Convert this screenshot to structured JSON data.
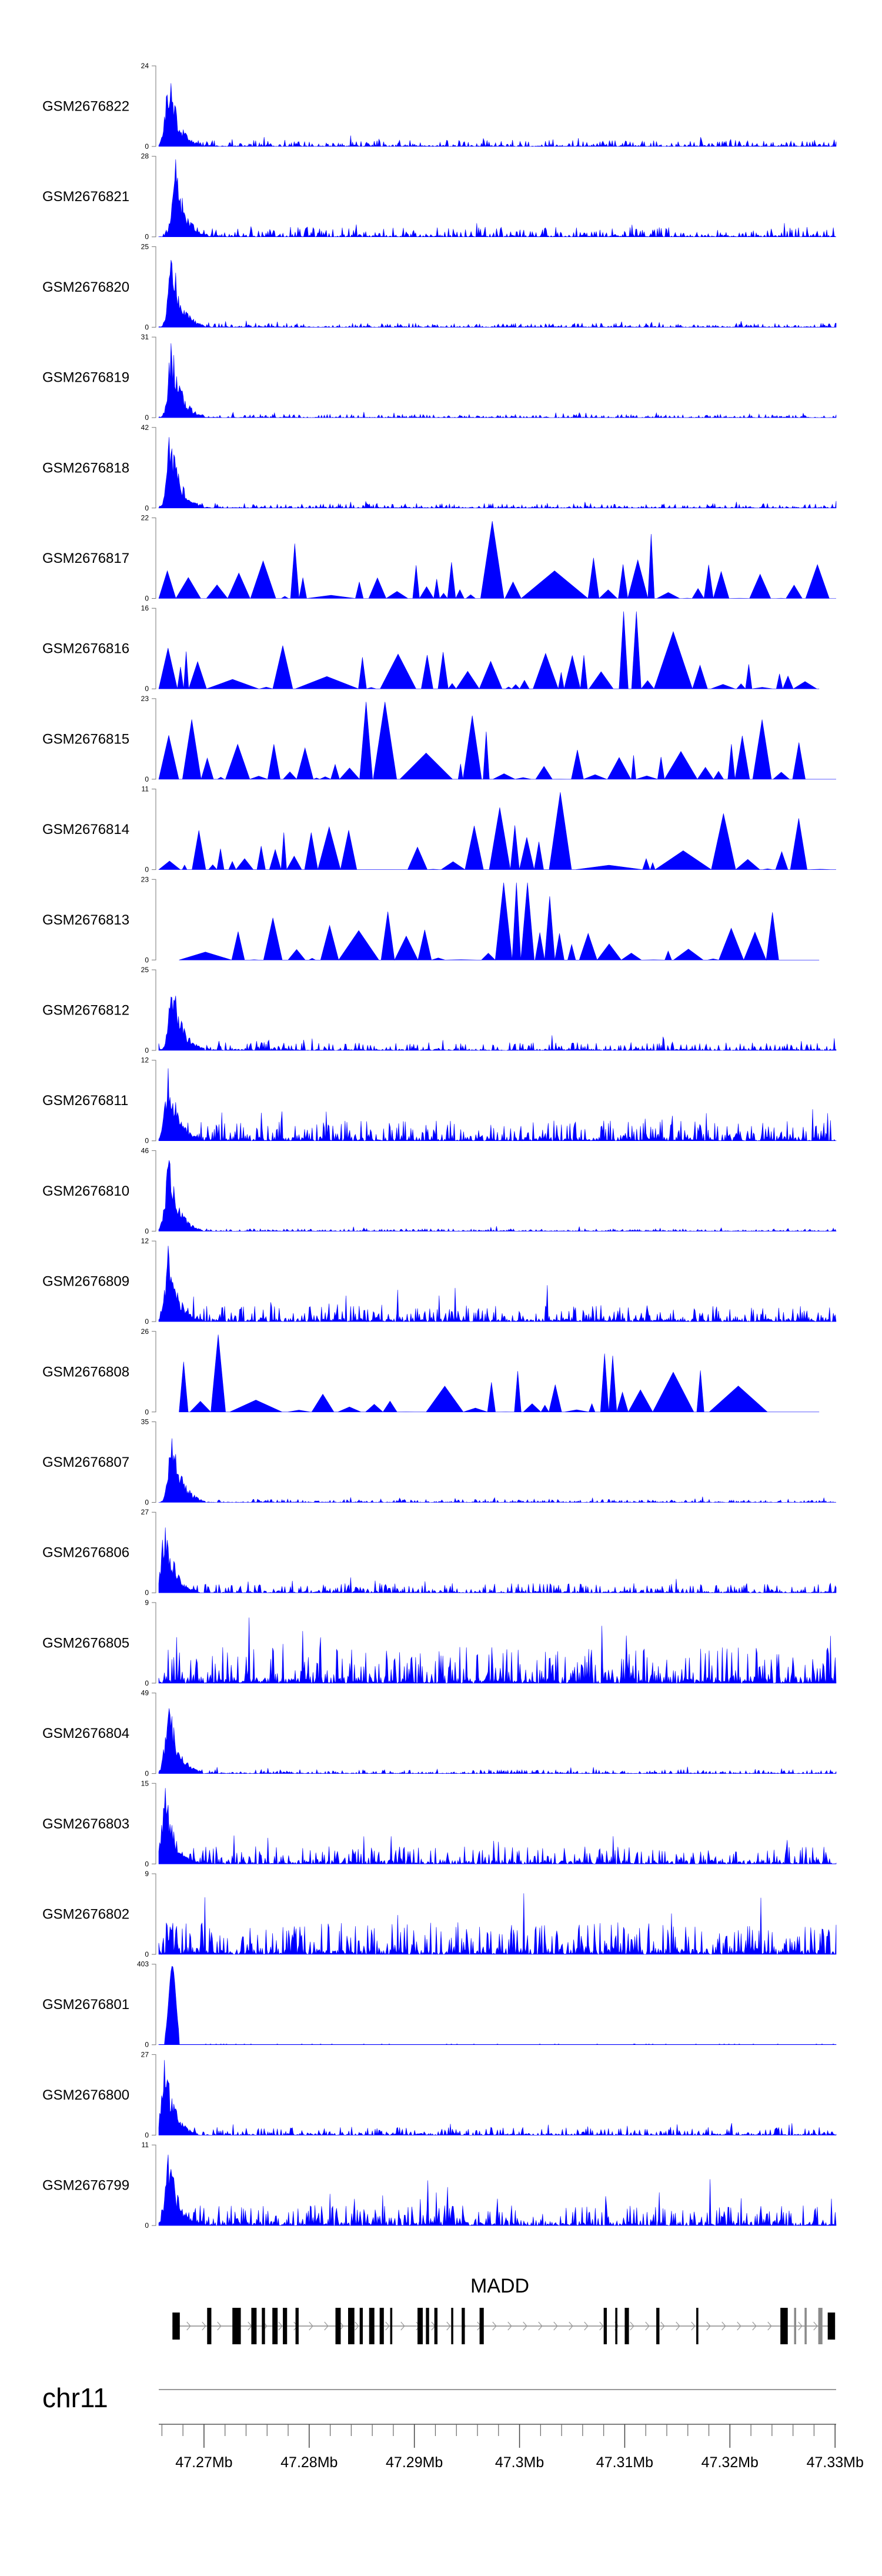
{
  "chart_data": {
    "type": "area",
    "title": "",
    "color": "#0000FF",
    "tracks": [
      {
        "name": "GSM2676822",
        "ymin": 0,
        "ymax": 24,
        "peak_frac": 0.015,
        "style": "dense"
      },
      {
        "name": "GSM2676821",
        "ymin": 0,
        "ymax": 28,
        "peak_frac": 0.025,
        "style": "dense"
      },
      {
        "name": "GSM2676820",
        "ymin": 0,
        "ymax": 25,
        "peak_frac": 0.02,
        "style": "dense"
      },
      {
        "name": "GSM2676819",
        "ymin": 0,
        "ymax": 31,
        "peak_frac": 0.02,
        "style": "dense"
      },
      {
        "name": "GSM2676818",
        "ymin": 0,
        "ymax": 42,
        "peak_frac": 0.018,
        "style": "dense"
      },
      {
        "name": "GSM2676817",
        "ymin": 0,
        "ymax": 22,
        "peak_frac": 0.49,
        "style": "sparse"
      },
      {
        "name": "GSM2676816",
        "ymin": 0,
        "ymax": 16,
        "peak_frac": 0.68,
        "style": "sparse"
      },
      {
        "name": "GSM2676815",
        "ymin": 0,
        "ymax": 23,
        "peak_frac": 0.32,
        "style": "sparse"
      },
      {
        "name": "GSM2676814",
        "ymin": 0,
        "ymax": 11,
        "peak_frac": 0.6,
        "style": "sparse"
      },
      {
        "name": "GSM2676813",
        "ymin": 0,
        "ymax": 23,
        "peak_frac": 0.52,
        "style": "sparse"
      },
      {
        "name": "GSM2676812",
        "ymin": 0,
        "ymax": 25,
        "peak_frac": 0.02,
        "style": "dense"
      },
      {
        "name": "GSM2676811",
        "ymin": 0,
        "ymax": 12,
        "peak_frac": 0.015,
        "style": "dense"
      },
      {
        "name": "GSM2676810",
        "ymin": 0,
        "ymax": 46,
        "peak_frac": 0.015,
        "style": "dense"
      },
      {
        "name": "GSM2676809",
        "ymin": 0,
        "ymax": 12,
        "peak_frac": 0.015,
        "style": "dense"
      },
      {
        "name": "GSM2676808",
        "ymin": 0,
        "ymax": 26,
        "peak_frac": 0.11,
        "style": "sparse"
      },
      {
        "name": "GSM2676807",
        "ymin": 0,
        "ymax": 35,
        "peak_frac": 0.02,
        "style": "dense"
      },
      {
        "name": "GSM2676806",
        "ymin": 0,
        "ymax": 27,
        "peak_frac": 0.01,
        "style": "dense"
      },
      {
        "name": "GSM2676805",
        "ymin": 0,
        "ymax": 9,
        "peak_frac": 0.15,
        "style": "dense"
      },
      {
        "name": "GSM2676804",
        "ymin": 0,
        "ymax": 49,
        "peak_frac": 0.015,
        "style": "dense"
      },
      {
        "name": "GSM2676803",
        "ymin": 0,
        "ymax": 15,
        "peak_frac": 0.01,
        "style": "dense"
      },
      {
        "name": "GSM2676802",
        "ymin": 0,
        "ymax": 9,
        "peak_frac": 0.24,
        "style": "dense"
      },
      {
        "name": "GSM2676801",
        "ymin": 0,
        "ymax": 403,
        "peak_frac": 0.02,
        "style": "single"
      },
      {
        "name": "GSM2676800",
        "ymin": 0,
        "ymax": 27,
        "peak_frac": 0.01,
        "style": "dense"
      },
      {
        "name": "GSM2676799",
        "ymin": 0,
        "ymax": 11,
        "peak_frac": 0.015,
        "style": "dense"
      }
    ],
    "gene": {
      "name": "MADD",
      "strand": "+",
      "exons": [
        [
          47.267,
          47.2677
        ],
        [
          47.2703,
          47.2707
        ],
        [
          47.2727,
          47.2735
        ],
        [
          47.2745,
          47.275
        ],
        [
          47.2755,
          47.2758
        ],
        [
          47.2765,
          47.277
        ],
        [
          47.2775,
          47.2779
        ],
        [
          47.2787,
          47.279
        ],
        [
          47.2825,
          47.283
        ],
        [
          47.2837,
          47.2843
        ],
        [
          47.2848,
          47.2851
        ],
        [
          47.2857,
          47.2862
        ],
        [
          47.2867,
          47.2871
        ],
        [
          47.2877,
          47.2879
        ],
        [
          47.2903,
          47.2908
        ],
        [
          47.2911,
          47.2914
        ],
        [
          47.2919,
          47.2922
        ],
        [
          47.2935,
          47.2937
        ],
        [
          47.2945,
          47.2948
        ],
        [
          47.2962,
          47.2966
        ],
        [
          47.308,
          47.3083
        ],
        [
          47.3091,
          47.3093
        ],
        [
          47.31,
          47.3104
        ],
        [
          47.313,
          47.3133
        ],
        [
          47.3168,
          47.317
        ],
        [
          47.3248,
          47.3255
        ],
        [
          47.3261,
          47.3263
        ],
        [
          47.3271,
          47.3273
        ],
        [
          47.3284,
          47.3288
        ],
        [
          47.3293,
          47.33
        ]
      ]
    },
    "chromosome": "chr11",
    "x_axis": {
      "unit": "Mb",
      "range": [
        47.2657,
        47.3301
      ],
      "ticks": [
        47.27,
        47.28,
        47.29,
        47.3,
        47.31,
        47.32,
        47.33
      ],
      "tick_labels": [
        "47.27Mb",
        "47.28Mb",
        "47.29Mb",
        "47.3Mb",
        "47.31Mb",
        "47.32Mb",
        "47.33Mb"
      ],
      "minor_step": 0.002
    }
  }
}
